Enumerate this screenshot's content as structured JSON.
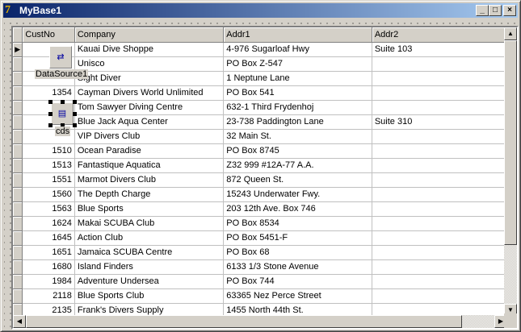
{
  "window": {
    "title": "MyBase1",
    "minimize": "_",
    "maximize": "□",
    "close": "×"
  },
  "grid": {
    "columns": [
      "CustNo",
      "Company",
      "Addr1",
      "Addr2"
    ],
    "rows": [
      [
        "",
        "Kauai Dive Shoppe",
        "4-976 Sugarloaf Hwy",
        "Suite 103"
      ],
      [
        "",
        "Unisco",
        "PO Box Z-547",
        ""
      ],
      [
        "",
        "Sight Diver",
        "1 Neptune Lane",
        ""
      ],
      [
        "1354",
        "Cayman Divers World Unlimited",
        "PO Box 541",
        ""
      ],
      [
        "",
        "Tom Sawyer Diving Centre",
        "632-1 Third Frydenhoj",
        ""
      ],
      [
        "",
        "Blue Jack Aqua Center",
        "23-738 Paddington Lane",
        "Suite 310"
      ],
      [
        "",
        "VIP Divers Club",
        "32 Main St.",
        ""
      ],
      [
        "1510",
        "Ocean Paradise",
        "PO Box 8745",
        ""
      ],
      [
        "1513",
        "Fantastique Aquatica",
        "Z32 999 #12A-77 A.A.",
        ""
      ],
      [
        "1551",
        "Marmot Divers Club",
        "872 Queen St.",
        ""
      ],
      [
        "1560",
        "The Depth Charge",
        "15243 Underwater Fwy.",
        ""
      ],
      [
        "1563",
        "Blue Sports",
        "203 12th Ave. Box 746",
        ""
      ],
      [
        "1624",
        "Makai SCUBA Club",
        "PO Box 8534",
        ""
      ],
      [
        "1645",
        "Action Club",
        "PO Box 5451-F",
        ""
      ],
      [
        "1651",
        "Jamaica SCUBA Centre",
        "PO Box 68",
        ""
      ],
      [
        "1680",
        "Island Finders",
        "6133 1/3 Stone Avenue",
        ""
      ],
      [
        "1984",
        "Adventure Undersea",
        "PO Box 744",
        ""
      ],
      [
        "2118",
        "Blue Sports Club",
        "63365 Nez Perce Street",
        ""
      ],
      [
        "2135",
        "Frank's Divers Supply",
        "1455 North 44th St.",
        ""
      ]
    ]
  },
  "components": {
    "datasource": "DataSource1",
    "dataset": "cds"
  }
}
